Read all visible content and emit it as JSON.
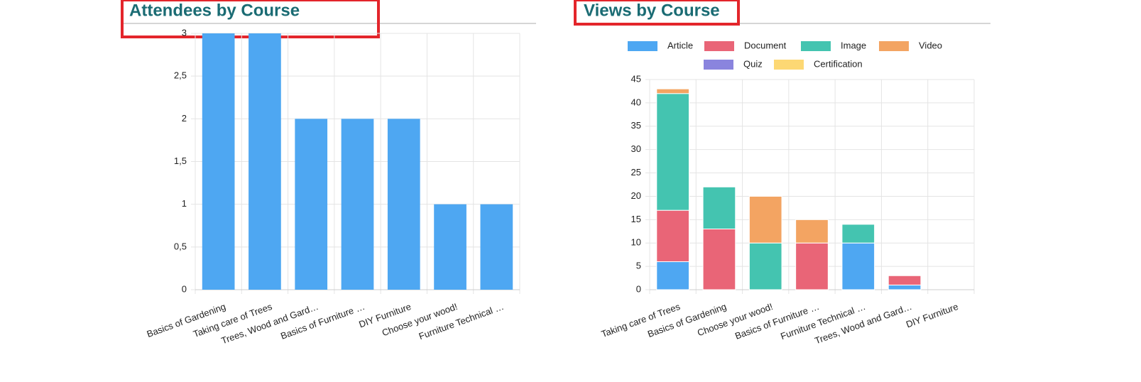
{
  "chart_data": [
    {
      "type": "bar",
      "title": "Attendees by Course",
      "categories": [
        "Basics of Gardening",
        "Taking care of Trees",
        "Trees, Wood and Gard…",
        "Basics of Furniture …",
        "DIY Furniture",
        "Choose your wood!",
        "Furniture Technical …"
      ],
      "values": [
        3,
        3,
        2,
        2,
        2,
        1,
        1
      ],
      "color": "#4ea7f2",
      "ylim": [
        0,
        3
      ],
      "yticks": [
        0,
        {
          "value": 0.5,
          "label": "0,5"
        },
        1,
        {
          "value": 1.5,
          "label": "1,5"
        },
        2,
        {
          "value": 2.5,
          "label": "2,5"
        },
        3
      ],
      "grid": true
    },
    {
      "type": "stacked-bar",
      "title": "Views by Course",
      "categories": [
        "Taking care of Trees",
        "Basics of Gardening",
        "Choose your wood!",
        "Basics of Furniture …",
        "Furniture Technical …",
        "Trees, Wood and Gard…",
        "DIY Furniture"
      ],
      "series": [
        {
          "name": "Article",
          "color": "#4ea7f2",
          "values": [
            6,
            0,
            0,
            0,
            10,
            1,
            0
          ]
        },
        {
          "name": "Document",
          "color": "#e96577",
          "values": [
            11,
            13,
            0,
            10,
            0,
            2,
            0
          ]
        },
        {
          "name": "Image",
          "color": "#44c4b0",
          "values": [
            25,
            9,
            10,
            0,
            4,
            0,
            0
          ]
        },
        {
          "name": "Video",
          "color": "#f3a462",
          "values": [
            1,
            0,
            10,
            5,
            0,
            0,
            0
          ]
        },
        {
          "name": "Quiz",
          "color": "#8a84de",
          "values": [
            0,
            0,
            0,
            0,
            0,
            0,
            0
          ]
        },
        {
          "name": "Certification",
          "color": "#fdd874",
          "values": [
            0,
            0,
            0,
            0,
            0,
            0,
            0
          ]
        }
      ],
      "ylim": [
        0,
        45
      ],
      "yticks": [
        0,
        5,
        10,
        15,
        20,
        25,
        30,
        35,
        40,
        45
      ],
      "grid": true,
      "legend": "top"
    }
  ]
}
